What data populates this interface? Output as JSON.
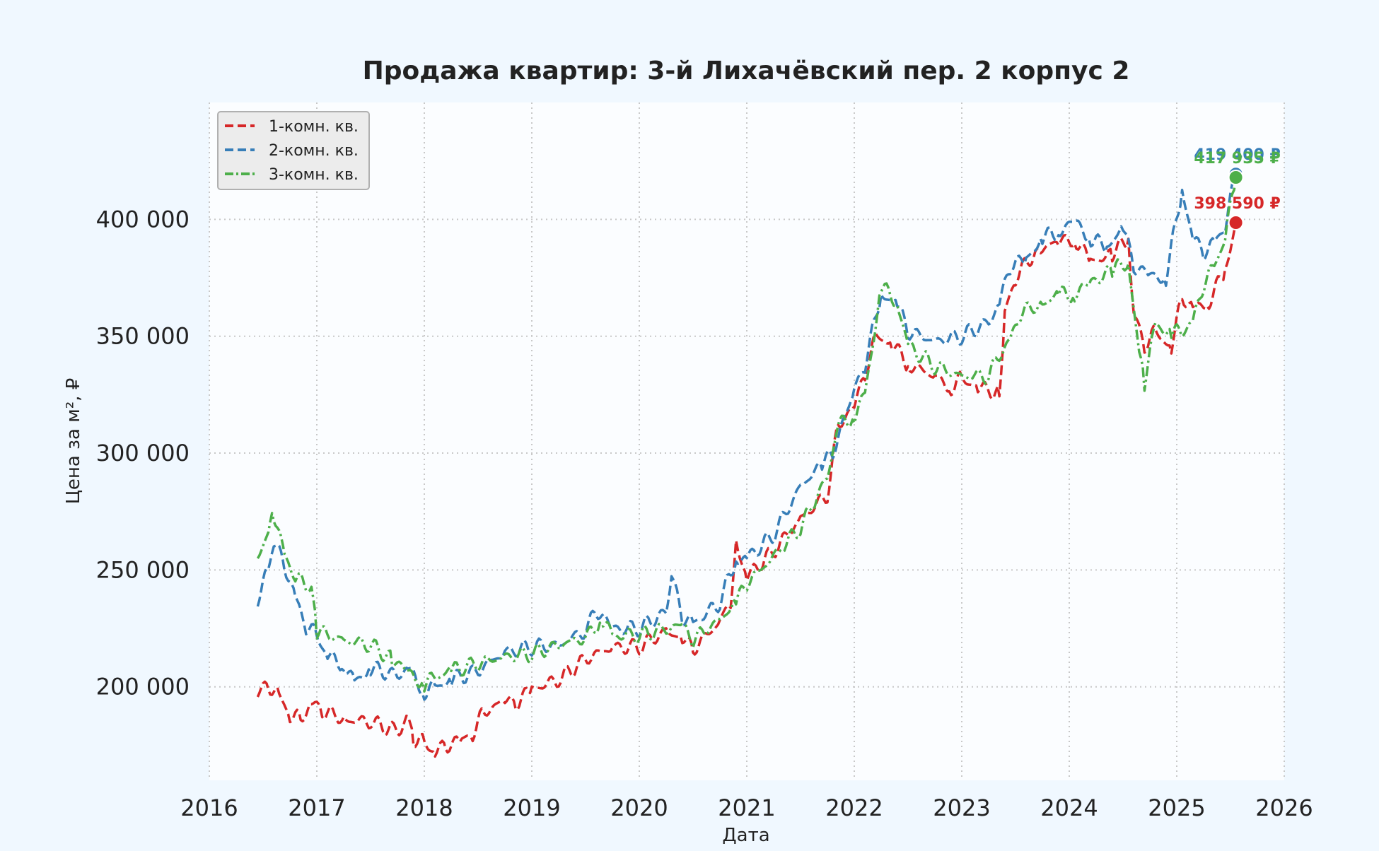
{
  "chart_data": {
    "type": "line",
    "title": "Продажа квартир: 3-й Лихачёвский пер. 2 корпус 2",
    "xlabel": "Дата",
    "ylabel": "Цена за м², ₽",
    "xlim": [
      2016.0,
      2026.0
    ],
    "ylim": [
      160000,
      450000
    ],
    "x_ticks": [
      2016,
      2017,
      2018,
      2019,
      2020,
      2021,
      2022,
      2023,
      2024,
      2025,
      2026
    ],
    "x_tick_labels": [
      "2016",
      "2017",
      "2018",
      "2019",
      "2020",
      "2021",
      "2022",
      "2023",
      "2024",
      "2025",
      "2026"
    ],
    "y_ticks": [
      200000,
      250000,
      300000,
      350000,
      400000
    ],
    "y_tick_labels": [
      "200 000",
      "250 000",
      "300 000",
      "350 000",
      "400 000"
    ],
    "grid": true,
    "legend_position": "top-left",
    "colors": {
      "background": "#f0f8ff",
      "plot_background": "#fbfdff",
      "grid": "#c8c8c8",
      "text": "#222222"
    },
    "series": [
      {
        "name": "1-комн. кв.",
        "color": "#d62728",
        "dash": "dashed",
        "x": [
          2016.45,
          2016.55,
          2016.65,
          2016.75,
          2016.85,
          2016.95,
          2017.05,
          2017.25,
          2017.5,
          2017.75,
          2017.85,
          2017.9,
          2018.0,
          2018.1,
          2018.2,
          2018.35,
          2018.45,
          2018.55,
          2018.75,
          2018.85,
          2019.0,
          2019.25,
          2019.5,
          2019.75,
          2020.0,
          2020.25,
          2020.4,
          2020.5,
          2020.75,
          2020.85,
          2020.9,
          2021.0,
          2021.25,
          2021.5,
          2021.75,
          2021.85,
          2022.0,
          2022.1,
          2022.2,
          2022.35,
          2022.5,
          2022.75,
          2022.9,
          2023.0,
          2023.15,
          2023.35,
          2023.4,
          2023.5,
          2023.7,
          2023.9,
          2024.05,
          2024.2,
          2024.4,
          2024.55,
          2024.6,
          2024.7,
          2024.8,
          2024.95,
          2025.05,
          2025.15,
          2025.3,
          2025.45,
          2025.55
        ],
        "y": [
          197000,
          201000,
          196000,
          188000,
          186000,
          193000,
          190000,
          186000,
          185000,
          181000,
          187000,
          178000,
          176000,
          172000,
          175000,
          177000,
          180000,
          189000,
          194000,
          193000,
          199000,
          203000,
          212000,
          217000,
          217000,
          224000,
          221000,
          216000,
          228000,
          237000,
          262000,
          247000,
          258000,
          272000,
          282000,
          312000,
          320000,
          334000,
          350000,
          347000,
          338000,
          333000,
          328000,
          332000,
          328000,
          326000,
          360000,
          375000,
          387000,
          390000,
          392000,
          382000,
          385000,
          392000,
          360000,
          346000,
          352000,
          345000,
          367000,
          362000,
          365000,
          378000,
          398590
        ],
        "last_label": "398 590 ₽"
      },
      {
        "name": "2-комн. кв.",
        "color": "#377eb8",
        "dash": "dashed",
        "x": [
          2016.45,
          2016.55,
          2016.6,
          2016.7,
          2016.8,
          2016.9,
          2017.0,
          2017.1,
          2017.25,
          2017.35,
          2017.5,
          2017.75,
          2017.85,
          2018.0,
          2018.1,
          2018.25,
          2018.5,
          2018.75,
          2019.0,
          2019.25,
          2019.5,
          2019.6,
          2019.75,
          2020.0,
          2020.25,
          2020.3,
          2020.4,
          2020.5,
          2020.75,
          2020.9,
          2021.0,
          2021.25,
          2021.5,
          2021.7,
          2021.8,
          2022.0,
          2022.1,
          2022.25,
          2022.4,
          2022.5,
          2022.75,
          2023.0,
          2023.25,
          2023.35,
          2023.45,
          2023.6,
          2023.75,
          2023.9,
          2024.05,
          2024.2,
          2024.35,
          2024.5,
          2024.6,
          2024.75,
          2024.9,
          2025.05,
          2025.15,
          2025.25,
          2025.35,
          2025.45,
          2025.55
        ],
        "y": [
          238000,
          250000,
          262000,
          252000,
          238000,
          226000,
          222000,
          213000,
          210000,
          202000,
          208000,
          205000,
          208000,
          198000,
          200000,
          203000,
          207000,
          215000,
          217000,
          218000,
          224000,
          233000,
          225000,
          225000,
          232000,
          248000,
          230000,
          227000,
          236000,
          255000,
          255000,
          265000,
          286000,
          295000,
          300000,
          327000,
          338000,
          368000,
          364000,
          352000,
          348000,
          350000,
          356000,
          364000,
          380000,
          383000,
          392000,
          395000,
          399000,
          392000,
          388000,
          397000,
          380000,
          376000,
          375000,
          413000,
          392000,
          386000,
          390000,
          397000,
          419400
        ],
        "last_label": "419 400 ₽"
      },
      {
        "name": "3-комн. кв.",
        "color": "#4daf4a",
        "dash": "dashdot",
        "x": [
          2016.45,
          2016.55,
          2016.6,
          2016.7,
          2016.8,
          2016.9,
          2016.95,
          2017.0,
          2017.25,
          2017.5,
          2017.7,
          2017.85,
          2018.0,
          2018.1,
          2018.25,
          2018.5,
          2018.75,
          2019.0,
          2019.25,
          2019.5,
          2019.65,
          2019.75,
          2020.0,
          2020.25,
          2020.4,
          2020.5,
          2020.75,
          2020.9,
          2021.0,
          2021.25,
          2021.5,
          2021.75,
          2021.85,
          2022.0,
          2022.1,
          2022.25,
          2022.4,
          2022.5,
          2022.75,
          2023.0,
          2023.25,
          2023.35,
          2023.45,
          2023.55,
          2023.75,
          2023.9,
          2024.05,
          2024.2,
          2024.4,
          2024.55,
          2024.65,
          2024.7,
          2024.8,
          2024.95,
          2025.05,
          2025.15,
          2025.25,
          2025.35,
          2025.45,
          2025.55
        ],
        "y": [
          256000,
          266000,
          274000,
          256000,
          247000,
          243000,
          242000,
          224000,
          220000,
          218000,
          212000,
          206000,
          201000,
          204000,
          207000,
          210000,
          213000,
          214000,
          218000,
          221000,
          229000,
          222000,
          222000,
          225000,
          226000,
          220000,
          229000,
          236000,
          244000,
          256000,
          268000,
          290000,
          312000,
          316000,
          325000,
          371000,
          365000,
          346000,
          337000,
          333000,
          333000,
          342000,
          348000,
          360000,
          364000,
          368000,
          368000,
          373000,
          378000,
          382000,
          343000,
          330000,
          355000,
          351000,
          352000,
          356000,
          372000,
          380000,
          392000,
          417935
        ],
        "last_label": "417 935 ₽"
      }
    ]
  }
}
